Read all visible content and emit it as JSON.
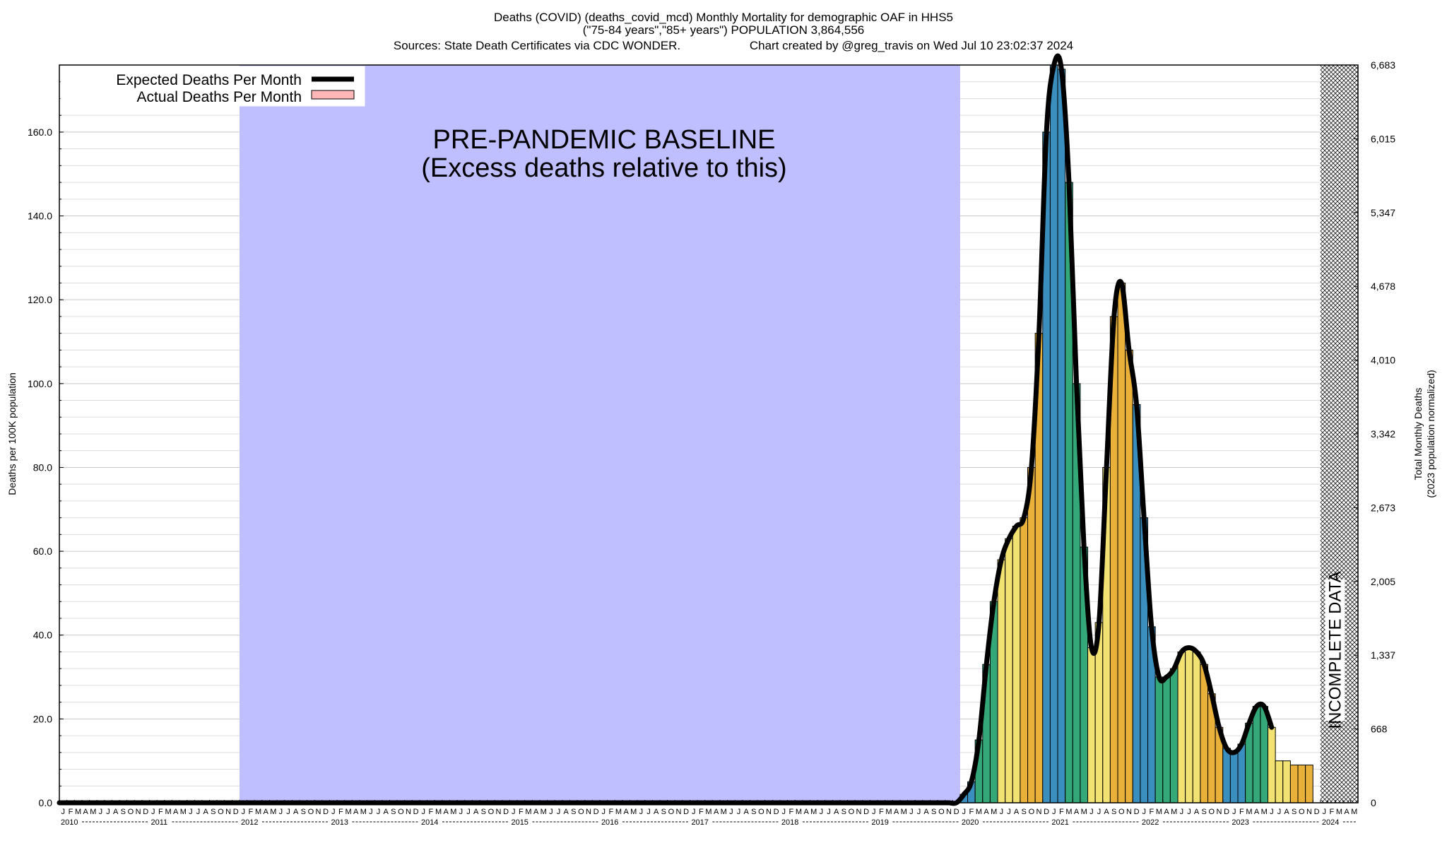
{
  "title_lines": [
    "Deaths (COVID) (deaths_covid_mcd) Monthly Mortality for demographic OAF in HHS5",
    "(\"75-84 years\",\"85+ years\") POPULATION 3,864,556",
    "Sources: State Death Certificates via CDC WONDER.",
    "Chart created by @greg_travis on Wed Jul 10 23:02:37 2024"
  ],
  "legend": {
    "expected_label": "Expected Deaths Per Month",
    "actual_label": "Actual Deaths Per Month"
  },
  "baseline_label": [
    "PRE-PANDEMIC BASELINE",
    "(Excess deaths relative to this)"
  ],
  "incomplete_label": "INCOMPLETE DATA",
  "colors": {
    "baseline_fill": "#bfbfff",
    "actual_legend_swatch": "#ffb6b6",
    "expected_line": "#000000",
    "season_colors": [
      "#3a8fbf",
      "#35a87a",
      "#f2e272",
      "#e9b13a"
    ]
  },
  "chart_data": {
    "type": "bar",
    "x_start": "2010-01",
    "x_end": "2024-05",
    "ylabel_left": "Deaths per 100K population",
    "ylabel_right": [
      "Total Monthly Deaths",
      "(2023 population normalized)"
    ],
    "ylim": [
      0,
      176
    ],
    "left_ticks": [
      "0.0",
      "20.0",
      "40.0",
      "60.0",
      "80.0",
      "100.0",
      "120.0",
      "140.0",
      "160.0"
    ],
    "right_ticks": [
      "0",
      "668",
      "1,337",
      "2,005",
      "2,673",
      "3,342",
      "4,010",
      "4,678",
      "5,347",
      "6,015",
      "6,683"
    ],
    "month_letters": [
      "J",
      "F",
      "M",
      "A",
      "M",
      "J",
      "J",
      "A",
      "S",
      "O",
      "N",
      "D"
    ],
    "years": [
      "2010",
      "2011",
      "2012",
      "2013",
      "2014",
      "2015",
      "2016",
      "2017",
      "2018",
      "2019",
      "2020",
      "2021",
      "2022",
      "2023",
      "2024"
    ],
    "baseline_period": [
      "2012-01",
      "2019-12"
    ],
    "incomplete_period": [
      "2024-01",
      "2024-05"
    ],
    "grid": true,
    "legend_position": "top-left",
    "series": [
      {
        "name": "Actual Deaths Per Month",
        "start": "2020-01",
        "values": [
          2,
          5,
          15,
          33,
          48,
          58,
          63,
          66,
          68,
          80,
          112,
          160,
          176,
          175,
          148,
          100,
          61,
          37,
          43,
          80,
          116,
          124,
          108,
          95,
          68,
          42,
          30,
          30,
          32,
          36,
          37,
          36,
          33,
          26,
          18,
          13,
          12,
          14,
          19,
          23,
          23,
          18,
          10,
          10,
          9,
          9,
          9
        ]
      },
      {
        "name": "Expected Deaths Per Month",
        "start": "2010-01",
        "values": [
          0,
          0,
          0,
          0,
          0,
          0,
          0,
          0,
          0,
          0,
          0,
          0,
          0,
          0,
          0,
          0,
          0,
          0,
          0,
          0,
          0,
          0,
          0,
          0,
          0,
          0,
          0,
          0,
          0,
          0,
          0,
          0,
          0,
          0,
          0,
          0,
          0,
          0,
          0,
          0,
          0,
          0,
          0,
          0,
          0,
          0,
          0,
          0,
          0,
          0,
          0,
          0,
          0,
          0,
          0,
          0,
          0,
          0,
          0,
          0,
          0,
          0,
          0,
          0,
          0,
          0,
          0,
          0,
          0,
          0,
          0,
          0,
          0,
          0,
          0,
          0,
          0,
          0,
          0,
          0,
          0,
          0,
          0,
          0,
          0,
          0,
          0,
          0,
          0,
          0,
          0,
          0,
          0,
          0,
          0,
          0,
          0,
          0,
          0,
          0,
          0,
          0,
          0,
          0,
          0,
          0,
          0,
          0,
          0,
          0,
          0,
          0,
          0,
          0,
          0,
          0,
          0,
          0,
          0,
          0,
          2,
          5,
          15,
          33,
          48,
          58,
          63,
          66,
          68,
          80,
          112,
          160,
          176,
          175,
          148,
          100,
          61,
          37,
          43,
          80,
          116,
          124,
          108,
          95,
          68,
          42,
          30,
          30,
          32,
          36,
          37,
          36,
          33,
          26,
          18,
          13,
          12,
          14,
          19,
          23,
          23,
          18
        ]
      }
    ]
  }
}
